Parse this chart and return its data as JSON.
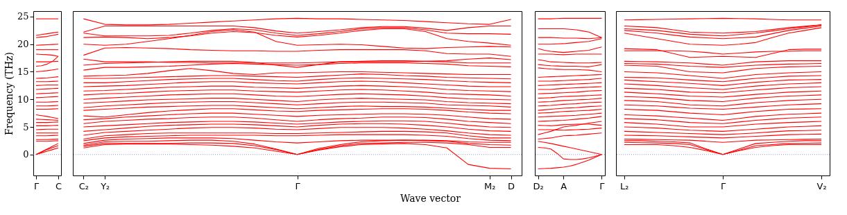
{
  "chart_data": [
    {
      "type": "line",
      "ylabel": "Frequency (THz)",
      "ylim": [
        -3.8,
        26
      ],
      "yticks": [
        0,
        5,
        10,
        15,
        20,
        25
      ],
      "categories": [
        "Γ",
        null,
        null,
        null,
        "C"
      ],
      "ref_lines": [
        {
          "axis": "y",
          "value": 0,
          "color": "#8080c0",
          "line_style": "dotted"
        }
      ],
      "legend": false,
      "line_style": "solid",
      "series": [
        {
          "color": "#ff0000",
          "values": [
            0,
            0.3,
            0.6,
            0.9,
            1.2
          ]
        },
        {
          "color": "#ff0000",
          "values": [
            0,
            0.45,
            0.9,
            1.25,
            1.6
          ]
        },
        {
          "color": "#ff0000",
          "values": [
            0,
            0.5,
            1.0,
            1.5,
            2.0
          ]
        },
        {
          "color": "#ff0000",
          "values": [
            2.4,
            2.4,
            2.4,
            2.45,
            2.5
          ]
        },
        {
          "color": "#ff0000",
          "values": [
            2.7,
            2.7,
            2.7,
            2.75,
            2.8
          ]
        },
        {
          "color": "#ff0000",
          "values": [
            3.4,
            3.4,
            3.4,
            3.45,
            3.5
          ]
        },
        {
          "color": "#ff0000",
          "values": [
            3.9,
            3.9,
            3.9,
            3.9,
            3.9
          ]
        },
        {
          "color": "#ff0000",
          "values": [
            4.5,
            4.55,
            4.6,
            4.6,
            4.6
          ]
        },
        {
          "color": "#ff0000",
          "values": [
            5.2,
            5.2,
            5.2,
            5.25,
            5.3
          ]
        },
        {
          "color": "#ff0000",
          "values": [
            5.8,
            5.8,
            5.8,
            5.85,
            5.9
          ]
        },
        {
          "color": "#ff0000",
          "values": [
            6.4,
            6.35,
            6.3,
            6.25,
            6.2
          ]
        },
        {
          "color": "#ff0000",
          "values": [
            7.2,
            7.05,
            6.9,
            6.7,
            6.5
          ]
        },
        {
          "color": "#ff0000",
          "values": [
            8.2,
            8.2,
            8.2,
            8.25,
            8.3
          ]
        },
        {
          "color": "#ff0000",
          "values": [
            8.8,
            8.8,
            8.8,
            8.85,
            8.9
          ]
        },
        {
          "color": "#ff0000",
          "values": [
            9.5,
            9.5,
            9.5,
            9.55,
            9.6
          ]
        },
        {
          "color": "#ff0000",
          "values": [
            10.3,
            10.35,
            10.4,
            10.45,
            10.5
          ]
        },
        {
          "color": "#ff0000",
          "values": [
            11.0,
            11.05,
            11.1,
            11.15,
            11.2
          ]
        },
        {
          "color": "#ff0000",
          "values": [
            11.8,
            11.85,
            11.9,
            11.95,
            12.0
          ]
        },
        {
          "color": "#ff0000",
          "values": [
            12.5,
            12.55,
            12.6,
            12.6,
            12.6
          ]
        },
        {
          "color": "#ff0000",
          "values": [
            13.2,
            13.2,
            13.2,
            13.25,
            13.3
          ]
        },
        {
          "color": "#ff0000",
          "values": [
            13.8,
            13.85,
            13.9,
            14.0,
            14.1
          ]
        },
        {
          "color": "#ff0000",
          "values": [
            15.0,
            15.1,
            15.2,
            15.35,
            15.5
          ]
        },
        {
          "color": "#ff0000",
          "values": [
            16.0,
            16.1,
            16.4,
            16.9,
            17.8
          ]
        },
        {
          "color": "#ff0000",
          "values": [
            16.8,
            16.8,
            16.8,
            16.85,
            16.9
          ]
        },
        {
          "color": "#ff0000",
          "values": [
            18.2,
            18.15,
            18.1,
            18.0,
            17.8
          ]
        },
        {
          "color": "#ff0000",
          "values": [
            19.0,
            19.0,
            19.0,
            19.0,
            19.0
          ]
        },
        {
          "color": "#ff0000",
          "values": [
            19.8,
            19.85,
            19.9,
            19.95,
            20.0
          ]
        },
        {
          "color": "#ff0000",
          "values": [
            21.2,
            21.3,
            21.4,
            21.6,
            21.8
          ]
        },
        {
          "color": "#ff0000",
          "values": [
            21.6,
            21.75,
            21.9,
            22.05,
            22.2
          ]
        },
        {
          "color": "#ff0000",
          "values": [
            24.6,
            24.6,
            24.6,
            24.6,
            24.6
          ]
        }
      ]
    },
    {
      "type": "line",
      "xlabel": "Wave vector",
      "ylim": [
        -3.8,
        26
      ],
      "yticks": [
        0,
        5,
        10,
        15,
        20,
        25
      ],
      "tick_labels": "x",
      "categories": [
        "C₂",
        "Y₂",
        null,
        null,
        null,
        null,
        null,
        null,
        null,
        null,
        "Γ",
        null,
        null,
        null,
        null,
        null,
        null,
        null,
        null,
        "M₂",
        "D"
      ],
      "ref_lines": [
        {
          "axis": "y",
          "value": 0,
          "color": "#8080c0",
          "line_style": "dotted"
        }
      ],
      "legend": false,
      "line_style": "solid",
      "series": [
        {
          "color": "#ff0000",
          "values": [
            1.2,
            1.8,
            1.9,
            1.9,
            1.9,
            1.8,
            1.7,
            1.5,
            1.2,
            0.6,
            0,
            0.8,
            1.4,
            1.8,
            1.9,
            2.0,
            1.8,
            1.2,
            -1.8,
            -2.5,
            -2.6
          ]
        },
        {
          "color": "#ff0000",
          "values": [
            1.5,
            2.0,
            2.0,
            2.0,
            2.0,
            2.1,
            2.1,
            2.0,
            1.6,
            0.9,
            0,
            0.9,
            1.6,
            2.0,
            2.1,
            2.2,
            2.2,
            2.1,
            1.8,
            1.3,
            1.3
          ]
        },
        {
          "color": "#ff0000",
          "values": [
            1.7,
            2.3,
            2.4,
            2.4,
            2.5,
            2.6,
            2.6,
            2.4,
            1.9,
            1.0,
            0,
            1.1,
            1.8,
            2.3,
            2.5,
            2.6,
            2.5,
            2.4,
            2.0,
            1.8,
            1.7
          ]
        },
        {
          "color": "#ff0000",
          "values": [
            2.0,
            2.6,
            2.8,
            2.9,
            3.0,
            3.0,
            3.0,
            2.9,
            2.6,
            2.3,
            2.1,
            2.3,
            2.5,
            2.6,
            2.6,
            2.6,
            2.6,
            2.5,
            2.3,
            2.2,
            2.2
          ]
        },
        {
          "color": "#ff0000",
          "values": [
            2.5,
            3.0,
            3.2,
            3.3,
            3.4,
            3.5,
            3.5,
            3.5,
            3.5,
            3.4,
            3.4,
            3.5,
            3.6,
            3.6,
            3.6,
            3.6,
            3.5,
            3.3,
            2.9,
            2.6,
            2.5
          ]
        },
        {
          "color": "#ff0000",
          "values": [
            2.8,
            3.4,
            3.6,
            3.8,
            3.9,
            3.9,
            3.9,
            3.9,
            3.9,
            3.8,
            3.8,
            3.9,
            4.0,
            4.1,
            4.2,
            4.2,
            4.1,
            3.9,
            3.4,
            3.0,
            3.0
          ]
        },
        {
          "color": "#ff0000",
          "values": [
            3.5,
            4.0,
            4.2,
            4.4,
            4.6,
            4.8,
            4.9,
            4.9,
            4.8,
            4.6,
            4.5,
            4.7,
            4.9,
            4.9,
            4.9,
            4.8,
            4.6,
            4.3,
            3.9,
            3.6,
            3.5
          ]
        },
        {
          "color": "#ff0000",
          "values": [
            4.2,
            4.5,
            4.8,
            5.1,
            5.3,
            5.4,
            5.5,
            5.5,
            5.4,
            5.2,
            5.0,
            5.3,
            5.5,
            5.6,
            5.6,
            5.5,
            5.3,
            5.0,
            4.6,
            4.3,
            4.2
          ]
        },
        {
          "color": "#ff0000",
          "values": [
            5.0,
            5.2,
            5.4,
            5.6,
            5.8,
            5.9,
            6.0,
            6.0,
            5.9,
            5.7,
            5.5,
            5.7,
            5.9,
            6.0,
            6.1,
            6.1,
            6.0,
            5.7,
            5.3,
            5.0,
            4.9
          ]
        },
        {
          "color": "#ff0000",
          "values": [
            5.6,
            6.0,
            6.2,
            6.4,
            6.5,
            6.7,
            6.8,
            6.8,
            6.6,
            6.3,
            6.0,
            6.3,
            6.5,
            6.6,
            6.8,
            6.8,
            6.7,
            6.4,
            6.0,
            5.8,
            5.6
          ]
        },
        {
          "color": "#ff0000",
          "values": [
            6.3,
            6.5,
            6.8,
            7.0,
            7.2,
            7.4,
            7.5,
            7.5,
            7.3,
            7.1,
            6.9,
            7.1,
            7.2,
            7.3,
            7.4,
            7.4,
            7.3,
            7.1,
            6.8,
            6.5,
            6.4
          ]
        },
        {
          "color": "#ff0000",
          "values": [
            7.0,
            6.8,
            7.2,
            7.6,
            7.9,
            8.1,
            8.3,
            8.3,
            8.1,
            7.9,
            7.8,
            8.0,
            8.1,
            8.2,
            8.3,
            8.3,
            8.2,
            8.0,
            7.7,
            7.5,
            7.4
          ]
        },
        {
          "color": "#ff0000",
          "values": [
            8.0,
            8.2,
            8.4,
            8.6,
            8.7,
            8.8,
            8.9,
            8.9,
            8.7,
            8.5,
            8.3,
            8.5,
            8.7,
            8.8,
            8.7,
            8.7,
            8.6,
            8.4,
            8.2,
            8.0,
            8.0
          ]
        },
        {
          "color": "#ff0000",
          "values": [
            8.5,
            8.8,
            9.0,
            9.2,
            9.4,
            9.5,
            9.6,
            9.6,
            9.4,
            9.2,
            9.0,
            9.2,
            9.4,
            9.5,
            9.5,
            9.4,
            9.3,
            9.0,
            8.9,
            8.8,
            8.6
          ]
        },
        {
          "color": "#ff0000",
          "values": [
            9.3,
            9.5,
            9.7,
            9.9,
            10.0,
            10.1,
            10.2,
            10.2,
            10.0,
            9.8,
            9.6,
            9.9,
            10.1,
            10.2,
            10.1,
            10.0,
            9.9,
            9.6,
            9.4,
            9.3,
            9.2
          ]
        },
        {
          "color": "#ff0000",
          "values": [
            10.0,
            10.2,
            10.4,
            10.6,
            10.8,
            10.9,
            11.0,
            11.0,
            10.8,
            10.6,
            10.5,
            10.7,
            10.9,
            11.0,
            10.9,
            10.8,
            10.6,
            10.3,
            10.1,
            10.0,
            9.9
          ]
        },
        {
          "color": "#ff0000",
          "values": [
            10.8,
            11.0,
            11.1,
            11.3,
            11.5,
            11.6,
            11.7,
            11.7,
            11.5,
            11.4,
            11.3,
            11.5,
            11.7,
            11.8,
            11.7,
            11.5,
            11.3,
            11.0,
            10.9,
            10.8,
            10.6
          ]
        },
        {
          "color": "#ff0000",
          "values": [
            11.5,
            11.6,
            11.8,
            12.0,
            12.2,
            12.3,
            12.4,
            12.4,
            12.2,
            12.1,
            12.0,
            12.2,
            12.4,
            12.5,
            12.4,
            12.3,
            12.1,
            11.8,
            11.6,
            11.5,
            11.4
          ]
        },
        {
          "color": "#ff0000",
          "values": [
            12.3,
            12.4,
            12.5,
            12.7,
            12.9,
            13.1,
            13.2,
            13.2,
            13.0,
            12.9,
            12.8,
            13.0,
            13.2,
            13.3,
            13.2,
            13.0,
            12.8,
            12.6,
            12.4,
            12.3,
            12.3
          ]
        },
        {
          "color": "#ff0000",
          "values": [
            13.0,
            13.0,
            13.2,
            13.4,
            13.6,
            13.7,
            13.8,
            13.8,
            13.6,
            13.4,
            13.3,
            13.6,
            13.8,
            13.9,
            13.8,
            13.7,
            13.6,
            13.4,
            13.2,
            13.1,
            13.0
          ]
        },
        {
          "color": "#ff0000",
          "values": [
            13.8,
            13.8,
            13.9,
            14.0,
            14.1,
            14.2,
            14.3,
            14.3,
            14.2,
            14.1,
            14.0,
            14.2,
            14.4,
            14.6,
            14.5,
            14.3,
            14.2,
            14.0,
            13.9,
            13.8,
            13.7
          ]
        },
        {
          "color": "#ff0000",
          "values": [
            14.2,
            14.3,
            14.4,
            14.7,
            15.2,
            15.6,
            15.2,
            14.7,
            14.5,
            14.8,
            14.8,
            14.9,
            15.0,
            15.0,
            14.9,
            14.8,
            14.7,
            14.6,
            14.5,
            14.5,
            14.5
          ]
        },
        {
          "color": "#ff0000",
          "values": [
            15.3,
            15.8,
            15.8,
            15.9,
            16.0,
            16.2,
            16.4,
            16.5,
            16.4,
            16.3,
            16.2,
            16.3,
            16.5,
            16.6,
            16.6,
            16.6,
            16.5,
            16.4,
            16.1,
            16.0,
            15.9
          ]
        },
        {
          "color": "#ff0000",
          "values": [
            16.2,
            16.5,
            16.6,
            16.7,
            16.8,
            16.9,
            16.9,
            16.9,
            16.7,
            16.2,
            15.8,
            16.3,
            16.8,
            16.9,
            17.0,
            17.0,
            16.9,
            16.8,
            16.6,
            16.6,
            16.6
          ]
        },
        {
          "color": "#ff0000",
          "values": [
            17.3,
            16.8,
            16.8,
            16.8,
            16.7,
            16.7,
            16.6,
            16.6,
            16.6,
            16.6,
            16.6,
            16.7,
            16.8,
            16.8,
            16.8,
            16.8,
            16.9,
            17.0,
            17.3,
            17.5,
            17.2
          ]
        },
        {
          "color": "#ff0000",
          "values": [
            18.0,
            19.3,
            19.4,
            19.3,
            19.2,
            19.0,
            18.9,
            18.8,
            18.8,
            18.7,
            18.7,
            18.9,
            19.0,
            19.0,
            19.0,
            19.0,
            18.8,
            18.3,
            18.2,
            18.2,
            17.8
          ]
        },
        {
          "color": "#ff0000",
          "values": [
            20.0,
            19.8,
            20.0,
            20.5,
            21.0,
            21.6,
            22.3,
            22.6,
            22.2,
            20.5,
            19.8,
            19.9,
            20.0,
            19.9,
            19.6,
            19.3,
            19.2,
            19.4,
            19.5,
            19.6,
            19.5
          ]
        },
        {
          "color": "#ff0000",
          "values": [
            21.2,
            21.3,
            21.2,
            21.0,
            21.2,
            21.5,
            22.0,
            22.3,
            22.1,
            21.6,
            21.3,
            21.6,
            22.0,
            22.5,
            22.8,
            22.8,
            22.3,
            21.0,
            20.5,
            20.2,
            19.8
          ]
        },
        {
          "color": "#ff0000",
          "values": [
            22.0,
            21.5,
            21.5,
            21.5,
            21.6,
            22.0,
            22.5,
            22.8,
            22.6,
            22.0,
            21.6,
            21.9,
            22.3,
            22.8,
            23.0,
            23.0,
            22.6,
            22.0,
            21.9,
            21.9,
            21.8
          ]
        },
        {
          "color": "#ff0000",
          "values": [
            22.2,
            23.3,
            23.3,
            23.3,
            23.3,
            23.3,
            23.3,
            23.3,
            23.0,
            22.4,
            22.0,
            22.3,
            22.6,
            23.0,
            23.2,
            23.2,
            22.9,
            22.5,
            23.0,
            23.3,
            23.3
          ]
        },
        {
          "color": "#ff0000",
          "values": [
            24.6,
            23.6,
            23.5,
            23.5,
            23.6,
            23.8,
            24.0,
            24.2,
            24.4,
            24.6,
            24.7,
            24.6,
            24.6,
            24.5,
            24.4,
            24.3,
            24.1,
            23.9,
            23.7,
            23.6,
            24.5
          ]
        }
      ]
    },
    {
      "type": "line",
      "ylim": [
        -3.8,
        26
      ],
      "yticks": [
        0,
        5,
        10,
        15,
        20,
        25
      ],
      "tick_labels": "x",
      "categories": [
        "D₂",
        null,
        null,
        null,
        "A",
        null,
        null,
        null,
        null,
        null,
        "Γ"
      ],
      "ref_lines": [
        {
          "axis": "y",
          "value": 0,
          "color": "#8080c0",
          "line_style": "dotted"
        }
      ],
      "legend": false,
      "line_style": "solid",
      "series": [
        {
          "color": "#ff0000",
          "values": [
            -2.6,
            -2.55,
            -2.5,
            -2.4,
            -2.3,
            -2.1,
            -1.8,
            -1.4,
            -1.0,
            -0.5,
            0
          ]
        },
        {
          "color": "#ff0000",
          "values": [
            1.3,
            1.2,
            1.0,
            0.2,
            -0.8,
            -0.9,
            -0.9,
            -0.8,
            -0.6,
            -0.3,
            0
          ]
        },
        {
          "color": "#ff0000",
          "values": [
            2.4,
            2.2,
            2.0,
            1.75,
            1.5,
            1.25,
            1.0,
            0.75,
            0.5,
            0.25,
            0
          ]
        },
        {
          "color": "#ff0000",
          "values": [
            2.8,
            2.9,
            3.0,
            3.2,
            3.4,
            3.45,
            3.5,
            3.6,
            3.7,
            3.8,
            3.9
          ]
        },
        {
          "color": "#ff0000",
          "values": [
            3.6,
            3.9,
            4.2,
            4.6,
            5.0,
            5.15,
            5.3,
            5.5,
            5.7,
            5.85,
            6.0
          ]
        },
        {
          "color": "#ff0000",
          "values": [
            4.5,
            4.5,
            4.5,
            4.45,
            4.4,
            4.45,
            4.5,
            4.55,
            4.6,
            4.7,
            4.8
          ]
        },
        {
          "color": "#ff0000",
          "values": [
            5.3,
            5.25,
            5.2,
            5.3,
            5.4,
            5.45,
            5.5,
            5.5,
            5.5,
            5.4,
            5.3
          ]
        },
        {
          "color": "#ff0000",
          "values": [
            6.0,
            6.05,
            6.1,
            6.15,
            6.2,
            6.3,
            6.4,
            6.5,
            6.6,
            6.75,
            6.9
          ]
        },
        {
          "color": "#ff0000",
          "values": [
            6.8,
            6.85,
            6.9,
            6.95,
            7.0,
            7.05,
            7.1,
            7.2,
            7.3,
            7.4,
            7.5
          ]
        },
        {
          "color": "#ff0000",
          "values": [
            7.5,
            7.55,
            7.6,
            7.7,
            7.8,
            7.85,
            7.9,
            7.95,
            8.0,
            8.1,
            8.2
          ]
        },
        {
          "color": "#ff0000",
          "values": [
            8.0,
            8.1,
            8.2,
            8.3,
            8.4,
            8.45,
            8.5,
            8.6,
            8.7,
            8.75,
            8.8
          ]
        },
        {
          "color": "#ff0000",
          "values": [
            8.8,
            8.85,
            8.9,
            9.0,
            9.1,
            9.15,
            9.2,
            9.3,
            9.4,
            9.45,
            9.5
          ]
        },
        {
          "color": "#ff0000",
          "values": [
            9.5,
            9.55,
            9.6,
            9.7,
            9.8,
            9.85,
            9.9,
            9.95,
            10.0,
            10.1,
            10.2
          ]
        },
        {
          "color": "#ff0000",
          "values": [
            10.2,
            10.25,
            10.3,
            10.4,
            10.5,
            10.55,
            10.6,
            10.65,
            10.7,
            10.75,
            10.8
          ]
        },
        {
          "color": "#ff0000",
          "values": [
            11.0,
            11.05,
            11.1,
            11.15,
            11.2,
            11.25,
            11.3,
            11.4,
            11.5,
            11.55,
            11.6
          ]
        },
        {
          "color": "#ff0000",
          "values": [
            11.8,
            11.8,
            11.8,
            11.9,
            12.0,
            12.05,
            12.1,
            12.15,
            12.2,
            12.25,
            12.3
          ]
        },
        {
          "color": "#ff0000",
          "values": [
            12.5,
            12.55,
            12.6,
            12.65,
            12.7,
            12.75,
            12.8,
            12.85,
            12.9,
            12.95,
            13.0
          ]
        },
        {
          "color": "#ff0000",
          "values": [
            13.3,
            13.3,
            13.3,
            13.35,
            13.4,
            13.45,
            13.5,
            13.55,
            13.6,
            13.7,
            13.8
          ]
        },
        {
          "color": "#ff0000",
          "values": [
            14.0,
            14.05,
            14.1,
            14.15,
            14.2,
            14.25,
            14.3,
            14.35,
            14.4,
            14.45,
            14.5
          ]
        },
        {
          "color": "#ff0000",
          "values": [
            15.7,
            15.6,
            15.5,
            15.45,
            15.4,
            15.4,
            15.4,
            15.35,
            15.3,
            15.15,
            15.0
          ]
        },
        {
          "color": "#ff0000",
          "values": [
            16.3,
            16.2,
            16.1,
            16.05,
            16.0,
            16.0,
            16.0,
            15.95,
            15.9,
            16.1,
            16.3
          ]
        },
        {
          "color": "#ff0000",
          "values": [
            17.2,
            17.0,
            16.8,
            16.75,
            16.7,
            16.65,
            16.6,
            16.6,
            16.6,
            16.65,
            16.7
          ]
        },
        {
          "color": "#ff0000",
          "values": [
            18.2,
            18.2,
            18.2,
            18.15,
            18.1,
            18.15,
            18.2,
            18.2,
            18.2,
            18.2,
            18.2
          ]
        },
        {
          "color": "#ff0000",
          "values": [
            19.2,
            18.9,
            18.7,
            18.6,
            18.5,
            18.6,
            18.7,
            18.8,
            18.9,
            19.2,
            19.5
          ]
        },
        {
          "color": "#ff0000",
          "values": [
            20.0,
            20.0,
            20.0,
            20.05,
            20.1,
            20.2,
            20.3,
            20.4,
            20.5,
            20.75,
            21.0
          ]
        },
        {
          "color": "#ff0000",
          "values": [
            21.2,
            21.2,
            21.2,
            21.15,
            21.1,
            21.1,
            21.1,
            21.05,
            21.0,
            21.1,
            21.2
          ]
        },
        {
          "color": "#ff0000",
          "values": [
            22.8,
            22.8,
            22.8,
            22.8,
            22.8,
            22.7,
            22.6,
            22.4,
            22.2,
            21.7,
            21.2
          ]
        },
        {
          "color": "#ff0000",
          "values": [
            24.6,
            24.6,
            24.6,
            24.65,
            24.7,
            24.7,
            24.7,
            24.7,
            24.7,
            24.7,
            24.7
          ]
        }
      ]
    },
    {
      "type": "line",
      "ylim": [
        -3.8,
        26
      ],
      "yticks": [
        0,
        5,
        10,
        15,
        20,
        25
      ],
      "tick_labels": "x",
      "categories": [
        "L₂",
        null,
        null,
        null,
        null,
        null,
        "Γ",
        null,
        null,
        null,
        null,
        null,
        "V₂"
      ],
      "ref_lines": [
        {
          "axis": "y",
          "value": 0,
          "color": "#8080c0",
          "line_style": "dotted"
        }
      ],
      "legend": false,
      "line_style": "solid",
      "series": [
        {
          "color": "#ff0000",
          "values": [
            1.8,
            1.8,
            1.8,
            1.6,
            1.3,
            0.7,
            0,
            0.7,
            1.3,
            1.6,
            1.8,
            1.8,
            1.8
          ]
        },
        {
          "color": "#ff0000",
          "values": [
            2.2,
            2.15,
            2.1,
            2.0,
            1.8,
            0.9,
            0,
            0.8,
            1.6,
            1.8,
            2.0,
            2.05,
            2.1
          ]
        },
        {
          "color": "#ff0000",
          "values": [
            2.5,
            2.5,
            2.4,
            2.3,
            2.1,
            1.0,
            0,
            1.0,
            2.0,
            2.2,
            2.4,
            2.5,
            2.5
          ]
        },
        {
          "color": "#ff0000",
          "values": [
            2.8,
            2.75,
            2.7,
            2.65,
            2.6,
            2.4,
            2.2,
            2.4,
            2.6,
            2.65,
            2.7,
            2.75,
            2.8
          ]
        },
        {
          "color": "#ff0000",
          "values": [
            3.5,
            3.45,
            3.4,
            3.3,
            3.2,
            3.1,
            3.0,
            3.15,
            3.3,
            3.45,
            3.6,
            3.65,
            3.7
          ]
        },
        {
          "color": "#ff0000",
          "values": [
            4.2,
            4.1,
            4.0,
            3.9,
            3.8,
            3.7,
            3.6,
            3.75,
            3.9,
            4.1,
            4.3,
            4.35,
            4.4
          ]
        },
        {
          "color": "#ff0000",
          "values": [
            5.0,
            4.9,
            4.8,
            4.6,
            4.4,
            4.3,
            4.2,
            4.4,
            4.6,
            4.8,
            5.0,
            5.1,
            5.2
          ]
        },
        {
          "color": "#ff0000",
          "values": [
            5.8,
            5.65,
            5.5,
            5.25,
            5.0,
            5.0,
            5.0,
            5.25,
            5.5,
            5.65,
            5.8,
            5.9,
            6.0
          ]
        },
        {
          "color": "#ff0000",
          "values": [
            6.5,
            6.4,
            6.3,
            6.05,
            5.8,
            5.7,
            5.6,
            5.9,
            6.2,
            6.4,
            6.6,
            6.7,
            6.8
          ]
        },
        {
          "color": "#ff0000",
          "values": [
            7.2,
            7.1,
            7.0,
            6.8,
            6.6,
            6.4,
            6.2,
            6.55,
            6.9,
            7.1,
            7.3,
            7.4,
            7.5
          ]
        },
        {
          "color": "#ff0000",
          "values": [
            8.2,
            8.1,
            8.0,
            7.75,
            7.5,
            7.35,
            7.2,
            7.5,
            7.8,
            8.0,
            8.2,
            8.25,
            8.3
          ]
        },
        {
          "color": "#ff0000",
          "values": [
            9.0,
            8.9,
            8.8,
            8.6,
            8.4,
            8.3,
            8.2,
            8.4,
            8.6,
            8.8,
            9.0,
            9.1,
            9.2
          ]
        },
        {
          "color": "#ff0000",
          "values": [
            9.8,
            9.7,
            9.6,
            9.3,
            9.0,
            8.9,
            8.8,
            9.1,
            9.4,
            9.6,
            9.8,
            9.9,
            10.0
          ]
        },
        {
          "color": "#ff0000",
          "values": [
            10.5,
            10.4,
            10.3,
            10.05,
            9.8,
            9.7,
            9.6,
            9.9,
            10.2,
            10.4,
            10.6,
            10.7,
            10.8
          ]
        },
        {
          "color": "#ff0000",
          "values": [
            11.3,
            11.15,
            11.0,
            10.8,
            10.6,
            10.5,
            10.4,
            10.65,
            10.9,
            11.1,
            11.3,
            11.4,
            11.5
          ]
        },
        {
          "color": "#ff0000",
          "values": [
            12.0,
            11.9,
            11.8,
            11.55,
            11.3,
            11.25,
            11.2,
            11.45,
            11.7,
            11.9,
            12.1,
            12.2,
            12.3
          ]
        },
        {
          "color": "#ff0000",
          "values": [
            12.8,
            12.65,
            12.5,
            12.3,
            12.1,
            11.95,
            11.8,
            12.1,
            12.4,
            12.6,
            12.8,
            12.9,
            13.0
          ]
        },
        {
          "color": "#ff0000",
          "values": [
            13.5,
            13.35,
            13.2,
            13.05,
            12.9,
            12.7,
            12.5,
            12.8,
            13.1,
            13.3,
            13.5,
            13.55,
            13.6
          ]
        },
        {
          "color": "#ff0000",
          "values": [
            14.0,
            13.95,
            13.9,
            13.7,
            13.5,
            13.35,
            13.2,
            13.5,
            13.8,
            14.0,
            14.2,
            14.25,
            14.3
          ]
        },
        {
          "color": "#ff0000",
          "values": [
            15.0,
            14.9,
            14.8,
            14.55,
            14.3,
            14.05,
            13.8,
            14.15,
            14.5,
            14.65,
            14.8,
            14.9,
            15.0
          ]
        },
        {
          "color": "#ff0000",
          "values": [
            16.2,
            16.1,
            16.0,
            15.5,
            15.0,
            14.9,
            14.8,
            15.2,
            15.6,
            15.75,
            15.9,
            15.95,
            16.0
          ]
        },
        {
          "color": "#ff0000",
          "values": [
            16.5,
            16.45,
            16.4,
            16.2,
            16.0,
            15.9,
            15.8,
            16.0,
            16.2,
            16.3,
            16.4,
            16.45,
            16.5
          ]
        },
        {
          "color": "#ff0000",
          "values": [
            16.9,
            16.85,
            16.8,
            16.7,
            16.6,
            16.4,
            16.2,
            16.5,
            16.8,
            16.9,
            17.0,
            17.0,
            17.0
          ]
        },
        {
          "color": "#ff0000",
          "values": [
            18.8,
            18.8,
            18.8,
            18.8,
            18.7,
            18.5,
            18.2,
            18.4,
            18.6,
            18.7,
            18.7,
            18.8,
            18.8
          ]
        },
        {
          "color": "#ff0000",
          "values": [
            19.2,
            19.1,
            19.0,
            18.3,
            17.6,
            17.7,
            17.8,
            17.7,
            17.6,
            18.3,
            19.0,
            19.1,
            19.1
          ]
        },
        {
          "color": "#ff0000",
          "values": [
            22.0,
            21.5,
            21.0,
            20.5,
            20.0,
            19.9,
            19.8,
            20.0,
            20.3,
            21.2,
            22.0,
            22.5,
            23.0
          ]
        },
        {
          "color": "#ff0000",
          "values": [
            22.5,
            22.25,
            22.0,
            21.65,
            21.3,
            21.15,
            21.0,
            21.15,
            21.3,
            21.9,
            22.5,
            22.9,
            23.3
          ]
        },
        {
          "color": "#ff0000",
          "values": [
            22.8,
            22.65,
            22.5,
            22.15,
            21.8,
            21.65,
            21.5,
            21.75,
            22.0,
            22.4,
            22.8,
            23.15,
            23.5
          ]
        },
        {
          "color": "#ff0000",
          "values": [
            23.3,
            23.15,
            23.0,
            22.6,
            22.2,
            22.1,
            22.0,
            22.15,
            22.3,
            22.65,
            23.0,
            23.25,
            23.5
          ]
        },
        {
          "color": "#ff0000",
          "values": [
            24.4,
            24.45,
            24.5,
            24.55,
            24.6,
            24.65,
            24.7,
            24.65,
            24.6,
            24.5,
            24.4,
            24.4,
            24.4
          ]
        }
      ]
    }
  ]
}
